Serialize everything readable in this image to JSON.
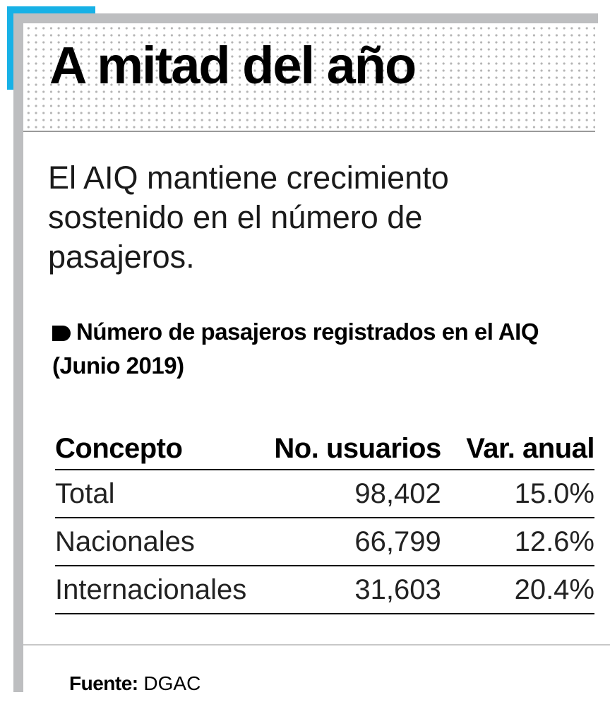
{
  "header": {
    "title": "A mitad del año"
  },
  "subtitle": "El AIQ mantiene crecimiento sostenido en el número de pasajeros.",
  "table_title": "Número de pasajeros registrados en el AIQ  (Junio 2019)",
  "table": {
    "columns": [
      "Concepto",
      "No. usuarios",
      "Var. anual"
    ],
    "rows": [
      [
        "Total",
        "98,402",
        "15.0%"
      ],
      [
        "Nacionales",
        "66,799",
        "12.6%"
      ],
      [
        "Internacionales",
        "31,603",
        "20.4%"
      ]
    ]
  },
  "source": {
    "label": "Fuente:",
    "value": "DGAC"
  },
  "colors": {
    "accent": "#17b1e6",
    "frame": "#bdbec0"
  }
}
